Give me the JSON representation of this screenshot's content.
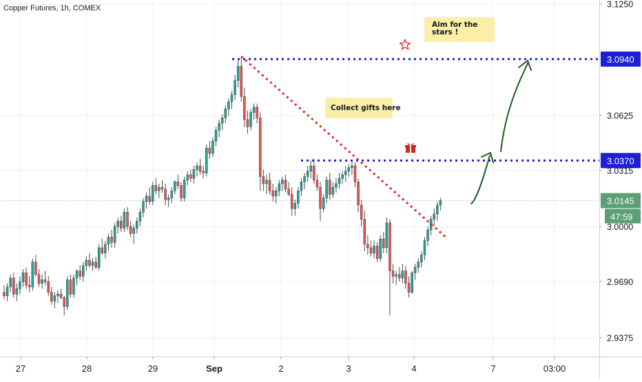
{
  "title": "Copper Futures, 1h, COMEX",
  "colors": {
    "up": "#26a69a",
    "down": "#ef5350",
    "grid": "#eef0f3",
    "axis_text": "#131722",
    "current_price_bg": "#5b9f73",
    "level_line": "#1f1fd6",
    "level_label_bg": "#1f1fd6",
    "trendline": "#e02424",
    "projection": "#1b5e20",
    "callout_bg": "#fbeea6"
  },
  "icons": {
    "star": "star-icon",
    "gift": "gift-icon"
  },
  "annotations": {
    "gifts_text": "Collect gifts here",
    "stars_text": "Aim for the stars !"
  },
  "chart_data": {
    "type": "candlestick",
    "title": "Copper Futures, 1h, COMEX",
    "xlabel": "",
    "ylabel": "",
    "y_axis_side": "right",
    "ylim": [
      2.9269,
      3.1272
    ],
    "y_ticks": [
      "3.1250",
      "3.0940",
      "3.0625",
      "3.0370",
      "3.0315",
      "3.0145",
      "3.0000",
      "2.9690",
      "2.9375"
    ],
    "y_grid_values": [
      3.125,
      3.0625,
      3.0315,
      3.0,
      2.969,
      2.9375
    ],
    "x_ticks": [
      "27",
      "28",
      "29",
      "Sep",
      "2",
      "3",
      "4",
      "7",
      "03:00"
    ],
    "grid": true,
    "horizontal_levels": [
      {
        "value": 3.094,
        "label": "3.0940"
      },
      {
        "value": 3.037,
        "label": "3.0370"
      }
    ],
    "last_price": {
      "value": 3.0145,
      "label": "3.0145",
      "countdown": "47:59"
    },
    "trendline": {
      "from": {
        "bar": 75,
        "price": 3.0955
      },
      "to": {
        "bar": 140,
        "price": 2.9935
      }
    },
    "ohlc": [
      [
        2.963,
        2.967,
        2.959,
        2.961
      ],
      [
        2.961,
        2.968,
        2.958,
        2.966
      ],
      [
        2.966,
        2.973,
        2.963,
        2.971
      ],
      [
        2.971,
        2.974,
        2.96,
        2.962
      ],
      [
        2.962,
        2.968,
        2.958,
        2.965
      ],
      [
        2.965,
        2.972,
        2.962,
        2.969
      ],
      [
        2.969,
        2.976,
        2.966,
        2.974
      ],
      [
        2.974,
        2.977,
        2.965,
        2.967
      ],
      [
        2.967,
        2.972,
        2.963,
        2.966
      ],
      [
        2.966,
        2.982,
        2.964,
        2.98
      ],
      [
        2.98,
        2.984,
        2.972,
        2.973
      ],
      [
        2.973,
        2.976,
        2.966,
        2.968
      ],
      [
        2.968,
        2.973,
        2.965,
        2.97
      ],
      [
        2.97,
        2.975,
        2.967,
        2.969
      ],
      [
        2.969,
        2.972,
        2.961,
        2.963
      ],
      [
        2.963,
        2.966,
        2.956,
        2.958
      ],
      [
        2.958,
        2.963,
        2.954,
        2.961
      ],
      [
        2.961,
        2.964,
        2.957,
        2.962
      ],
      [
        2.962,
        2.965,
        2.959,
        2.96
      ],
      [
        2.96,
        2.961,
        2.95,
        2.955
      ],
      [
        2.955,
        2.972,
        2.953,
        2.97
      ],
      [
        2.97,
        2.973,
        2.96,
        2.962
      ],
      [
        2.962,
        2.973,
        2.96,
        2.971
      ],
      [
        2.971,
        2.976,
        2.967,
        2.975
      ],
      [
        2.975,
        2.978,
        2.97,
        2.972
      ],
      [
        2.972,
        2.98,
        2.969,
        2.978
      ],
      [
        2.978,
        2.983,
        2.975,
        2.981
      ],
      [
        2.981,
        2.985,
        2.977,
        2.978
      ],
      [
        2.978,
        2.982,
        2.975,
        2.98
      ],
      [
        2.98,
        2.983,
        2.976,
        2.977
      ],
      [
        2.977,
        2.99,
        2.975,
        2.988
      ],
      [
        2.988,
        2.993,
        2.984,
        2.985
      ],
      [
        2.985,
        2.992,
        2.982,
        2.99
      ],
      [
        2.99,
        2.996,
        2.986,
        2.994
      ],
      [
        2.994,
        2.998,
        2.988,
        2.991
      ],
      [
        2.991,
        3.002,
        2.988,
        3.0
      ],
      [
        3.0,
        3.005,
        2.996,
        3.003
      ],
      [
        3.003,
        3.006,
        2.997,
        2.999
      ],
      [
        2.999,
        3.01,
        2.997,
        3.008
      ],
      [
        3.008,
        3.011,
        2.998,
        3.0
      ],
      [
        3.0,
        3.003,
        2.994,
        2.996
      ],
      [
        2.996,
        3.001,
        2.99,
        2.999
      ],
      [
        2.999,
        3.005,
        2.996,
        3.003
      ],
      [
        3.003,
        3.01,
        3.0,
        3.008
      ],
      [
        3.008,
        3.016,
        3.005,
        3.014
      ],
      [
        3.014,
        3.019,
        3.01,
        3.017
      ],
      [
        3.017,
        3.022,
        3.012,
        3.014
      ],
      [
        3.014,
        3.025,
        3.012,
        3.023
      ],
      [
        3.023,
        3.027,
        3.018,
        3.02
      ],
      [
        3.02,
        3.024,
        3.016,
        3.022
      ],
      [
        3.022,
        3.026,
        3.019,
        3.021
      ],
      [
        3.021,
        3.024,
        3.012,
        3.015
      ],
      [
        3.015,
        3.018,
        3.011,
        3.016
      ],
      [
        3.016,
        3.022,
        3.013,
        3.02
      ],
      [
        3.02,
        3.026,
        3.018,
        3.025
      ],
      [
        3.025,
        3.029,
        3.021,
        3.023
      ],
      [
        3.023,
        3.025,
        3.014,
        3.016
      ],
      [
        3.016,
        3.028,
        3.014,
        3.026
      ],
      [
        3.026,
        3.031,
        3.023,
        3.029
      ],
      [
        3.029,
        3.032,
        3.025,
        3.027
      ],
      [
        3.027,
        3.034,
        3.024,
        3.032
      ],
      [
        3.032,
        3.036,
        3.028,
        3.034
      ],
      [
        3.034,
        3.038,
        3.029,
        3.031
      ],
      [
        3.031,
        3.034,
        3.027,
        3.03
      ],
      [
        3.03,
        3.046,
        3.028,
        3.044
      ],
      [
        3.044,
        3.048,
        3.038,
        3.041
      ],
      [
        3.041,
        3.05,
        3.039,
        3.048
      ],
      [
        3.048,
        3.056,
        3.045,
        3.054
      ],
      [
        3.054,
        3.06,
        3.05,
        3.058
      ],
      [
        3.058,
        3.063,
        3.054,
        3.061
      ],
      [
        3.061,
        3.068,
        3.058,
        3.066
      ],
      [
        3.066,
        3.072,
        3.062,
        3.07
      ],
      [
        3.07,
        3.076,
        3.066,
        3.074
      ],
      [
        3.074,
        3.085,
        3.071,
        3.082
      ],
      [
        3.082,
        3.094,
        3.078,
        3.09
      ],
      [
        3.09,
        3.095,
        3.07,
        3.073
      ],
      [
        3.073,
        3.078,
        3.056,
        3.06
      ],
      [
        3.06,
        3.065,
        3.052,
        3.056
      ],
      [
        3.056,
        3.066,
        3.054,
        3.064
      ],
      [
        3.064,
        3.069,
        3.06,
        3.067
      ],
      [
        3.067,
        3.069,
        3.058,
        3.061
      ],
      [
        3.061,
        3.064,
        3.02,
        3.028
      ],
      [
        3.028,
        3.032,
        3.02,
        3.024
      ],
      [
        3.024,
        3.029,
        3.018,
        3.026
      ],
      [
        3.026,
        3.03,
        3.018,
        3.02
      ],
      [
        3.02,
        3.024,
        3.014,
        3.017
      ],
      [
        3.017,
        3.022,
        3.013,
        3.02
      ],
      [
        3.02,
        3.026,
        3.017,
        3.024
      ],
      [
        3.024,
        3.028,
        3.02,
        3.026
      ],
      [
        3.026,
        3.029,
        3.019,
        3.021
      ],
      [
        3.021,
        3.025,
        3.017,
        3.018
      ],
      [
        3.018,
        3.022,
        3.006,
        3.01
      ],
      [
        3.01,
        3.015,
        3.006,
        3.013
      ],
      [
        3.013,
        3.022,
        3.01,
        3.02
      ],
      [
        3.02,
        3.027,
        3.017,
        3.025
      ],
      [
        3.025,
        3.03,
        3.021,
        3.028
      ],
      [
        3.028,
        3.034,
        3.025,
        3.031
      ],
      [
        3.031,
        3.037,
        3.027,
        3.034
      ],
      [
        3.034,
        3.038,
        3.024,
        3.026
      ],
      [
        3.026,
        3.029,
        3.02,
        3.022
      ],
      [
        3.022,
        3.025,
        3.003,
        3.01
      ],
      [
        3.01,
        3.018,
        3.008,
        3.016
      ],
      [
        3.016,
        3.028,
        3.013,
        3.026
      ],
      [
        3.026,
        3.03,
        3.015,
        3.018
      ],
      [
        3.018,
        3.025,
        3.016,
        3.022
      ],
      [
        3.022,
        3.027,
        3.019,
        3.024
      ],
      [
        3.024,
        3.03,
        3.021,
        3.027
      ],
      [
        3.027,
        3.031,
        3.024,
        3.029
      ],
      [
        3.029,
        3.034,
        3.025,
        3.031
      ],
      [
        3.031,
        3.035,
        3.028,
        3.033
      ],
      [
        3.033,
        3.037,
        3.029,
        3.034
      ],
      [
        3.034,
        3.036,
        3.022,
        3.025
      ],
      [
        3.025,
        3.027,
        3.008,
        3.012
      ],
      [
        3.012,
        3.015,
        3.0,
        3.004
      ],
      [
        3.004,
        3.009,
        2.986,
        2.99
      ],
      [
        2.99,
        2.995,
        2.984,
        2.988
      ],
      [
        2.988,
        2.992,
        2.983,
        2.985
      ],
      [
        2.985,
        2.992,
        2.982,
        2.989
      ],
      [
        2.989,
        2.991,
        2.98,
        2.982
      ],
      [
        2.982,
        2.995,
        2.98,
        2.993
      ],
      [
        2.993,
        2.997,
        2.985,
        2.988
      ],
      [
        2.988,
        3.005,
        2.985,
        3.002
      ],
      [
        3.002,
        3.004,
        2.95,
        2.975
      ],
      [
        2.975,
        2.979,
        2.968,
        2.972
      ],
      [
        2.972,
        2.975,
        2.967,
        2.973
      ],
      [
        2.973,
        2.977,
        2.969,
        2.971
      ],
      [
        2.971,
        2.979,
        2.968,
        2.975
      ],
      [
        2.975,
        2.978,
        2.965,
        2.968
      ],
      [
        2.968,
        2.972,
        2.96,
        2.963
      ],
      [
        2.963,
        2.975,
        2.962,
        2.974
      ],
      [
        2.974,
        2.979,
        2.97,
        2.977
      ],
      [
        2.977,
        2.982,
        2.974,
        2.98
      ],
      [
        2.98,
        2.986,
        2.977,
        2.984
      ],
      [
        2.984,
        2.994,
        2.981,
        2.992
      ],
      [
        2.992,
        3.0,
        2.989,
        2.998
      ],
      [
        2.998,
        3.006,
        2.995,
        3.004
      ],
      [
        3.004,
        3.01,
        3.0,
        3.007
      ],
      [
        3.007,
        3.014,
        3.003,
        3.012
      ],
      [
        3.012,
        3.016,
        3.009,
        3.0145
      ]
    ]
  }
}
